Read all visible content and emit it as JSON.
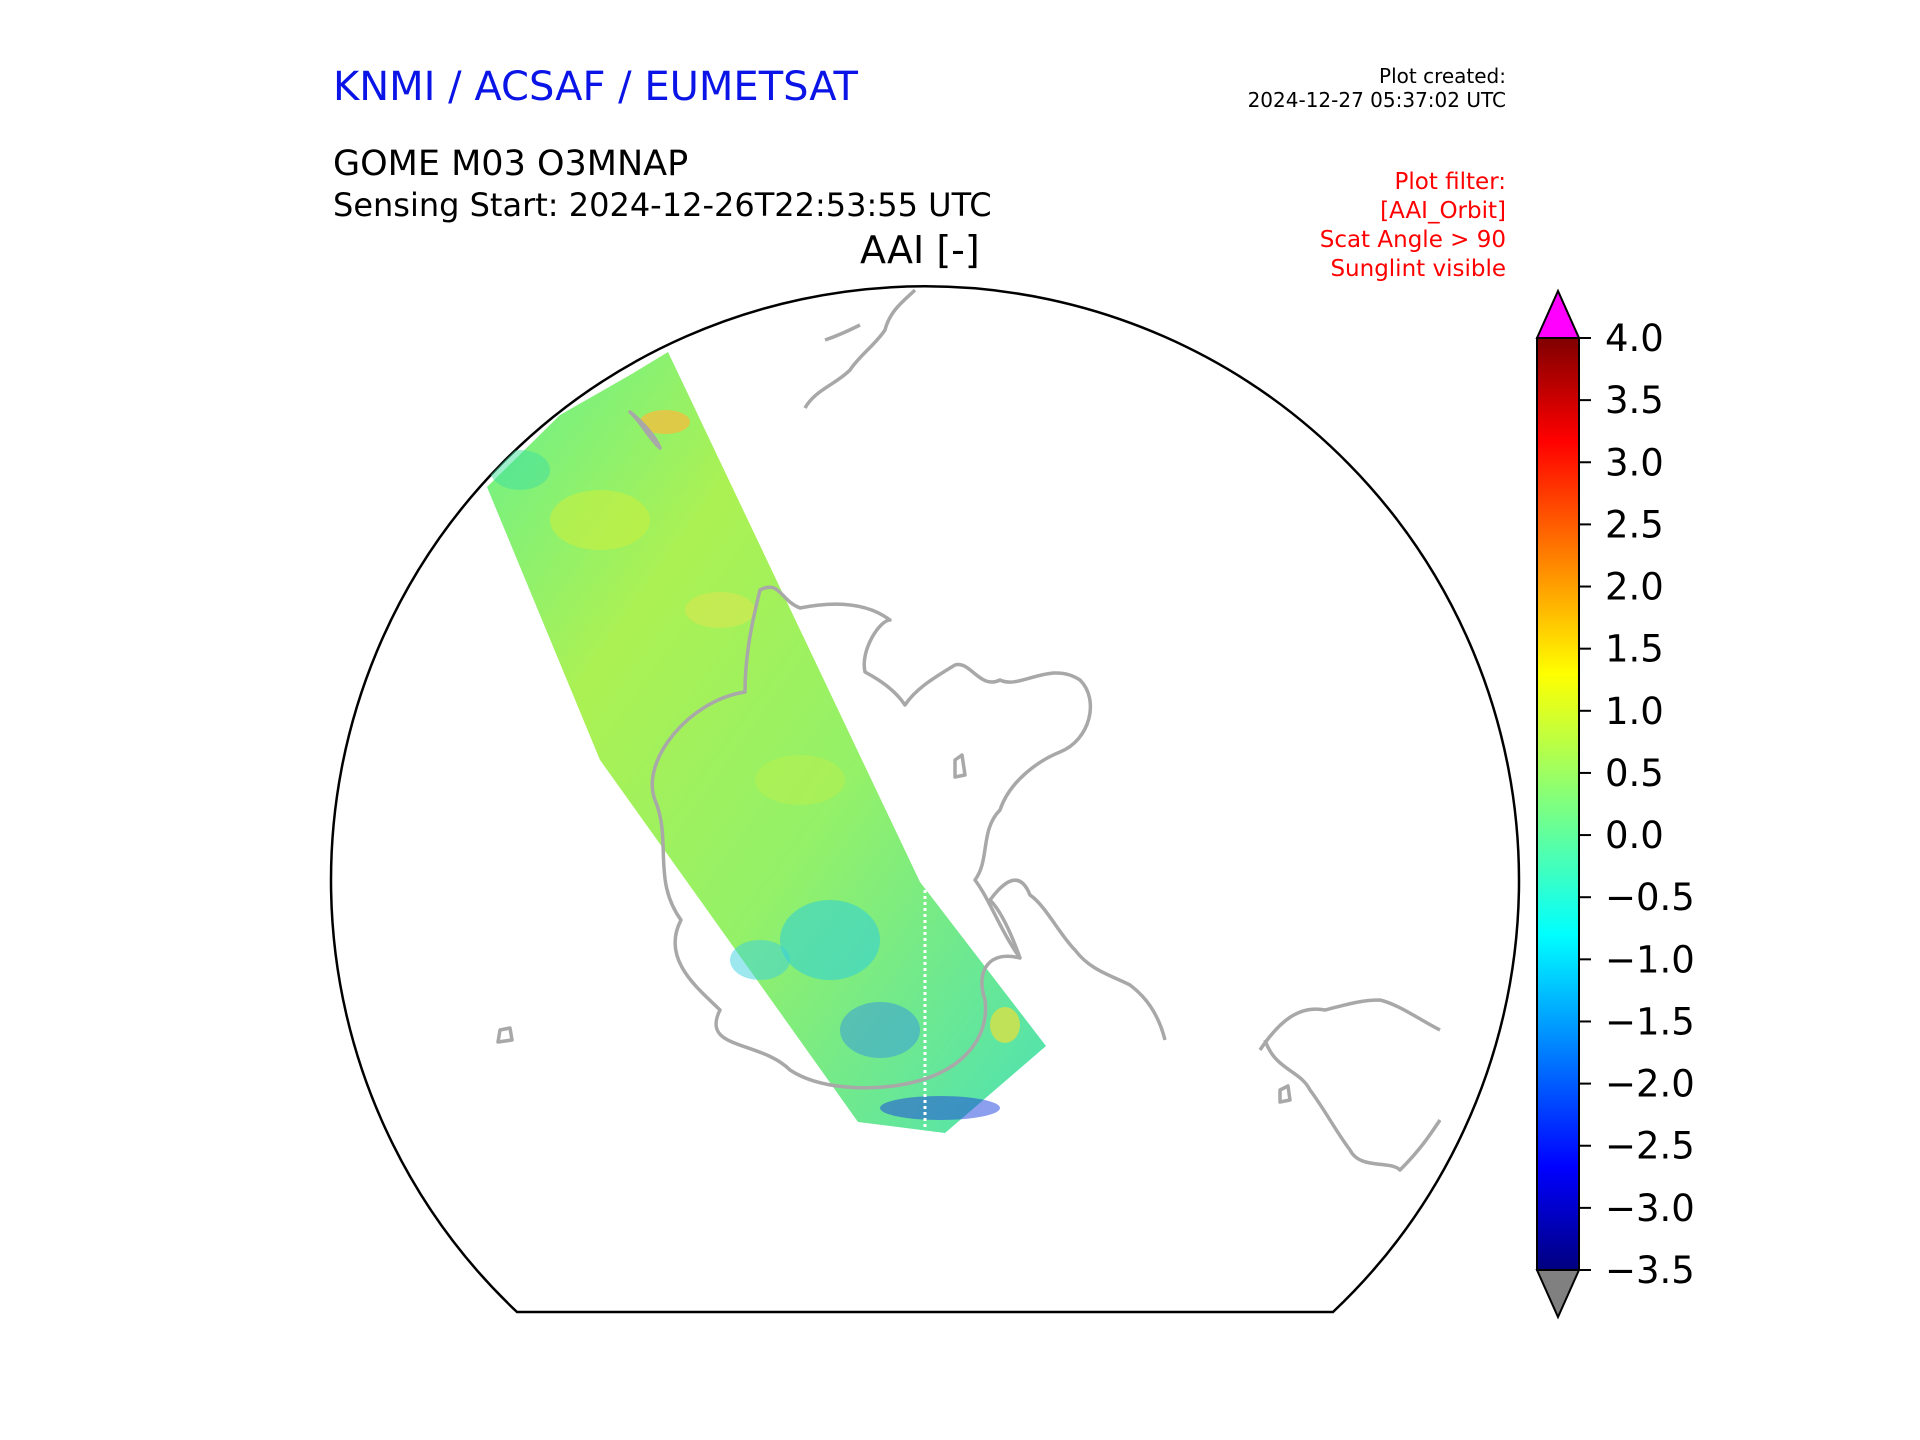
{
  "header": {
    "organization": "KNMI / ACSAF / EUMETSAT",
    "plot_created_label": "Plot created:",
    "plot_created_time": "2024-12-27 05:37:02 UTC",
    "product": "GOME M03 O3MNAP",
    "sensing_start": "Sensing Start: 2024-12-26T22:53:55 UTC",
    "variable_title": "AAI [-]"
  },
  "filter": {
    "lines": [
      "Plot filter:",
      "[AAI_Orbit]",
      "Scat Angle > 90",
      "Sunglint visible"
    ]
  },
  "colors": {
    "organization": "#0a14e6",
    "filter": "#ff0000",
    "coastline": "#a8a8a8",
    "over_extend": "#ff00ff",
    "under_extend": "#808080"
  },
  "colorbar": {
    "min": -3.5,
    "max": 4.0,
    "ticks": [
      "4.0",
      "3.5",
      "3.0",
      "2.5",
      "2.0",
      "1.5",
      "1.0",
      "0.5",
      "0.0",
      "−0.5",
      "−1.0",
      "−1.5",
      "−2.0",
      "−2.5",
      "−3.0",
      "−3.5"
    ],
    "colormap": "jet"
  },
  "map": {
    "projection": "orthographic-south-polar",
    "swath_typical_aai": 0.3
  }
}
